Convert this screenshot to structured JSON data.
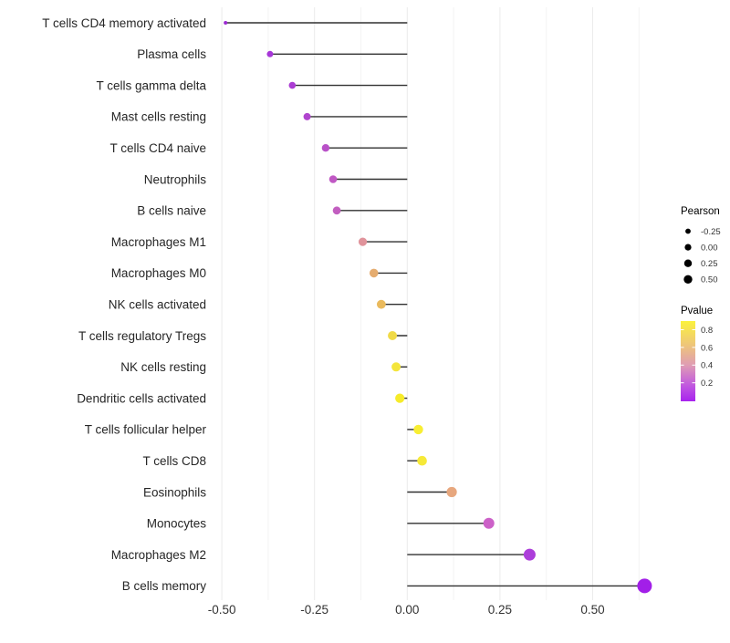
{
  "chart_data": {
    "type": "scatter",
    "subtype": "lollipop",
    "title": "",
    "xlabel": "",
    "ylabel": "",
    "orientation": "horizontal",
    "xlim": [
      -0.527,
      0.715
    ],
    "x_ticks": [
      -0.5,
      -0.25,
      0,
      0.25,
      0.5
    ],
    "x_tick_labels": [
      "-0.50",
      "-0.25",
      "0.00",
      "0.25",
      "0.50"
    ],
    "x_minor_ticks": [
      -0.375,
      -0.125,
      0.125,
      0.375,
      0.625
    ],
    "grid": "vertical-only",
    "baseline_x": 0,
    "categories": [
      "T cells CD4 memory activated",
      "Plasma cells",
      "T cells gamma delta",
      "Mast cells resting",
      "T cells CD4 naive",
      "Neutrophils",
      "B cells naive",
      "Macrophages M1",
      "Macrophages M0",
      "NK cells activated",
      "T cells regulatory  Tregs",
      "NK cells resting",
      "Dendritic cells activated",
      "T cells follicular helper",
      "T cells CD8",
      "Eosinophils",
      "Monocytes",
      "Macrophages M2",
      "B cells memory"
    ],
    "points": [
      {
        "label": "T cells CD4 memory activated",
        "pearson": -0.49,
        "color": "#9C2BD1",
        "radius": 2.0
      },
      {
        "label": "Plasma cells",
        "pearson": -0.37,
        "color": "#A737D8",
        "radius": 3.5
      },
      {
        "label": "T cells gamma delta",
        "pearson": -0.31,
        "color": "#AB3CD3",
        "radius": 3.8
      },
      {
        "label": "Mast cells resting",
        "pearson": -0.27,
        "color": "#B045CE",
        "radius": 4.0
      },
      {
        "label": "T cells CD4 naive",
        "pearson": -0.22,
        "color": "#B951C8",
        "radius": 4.2
      },
      {
        "label": "Neutrophils",
        "pearson": -0.2,
        "color": "#C058C4",
        "radius": 4.3
      },
      {
        "label": "B cells naive",
        "pearson": -0.19,
        "color": "#C25EC0",
        "radius": 4.4
      },
      {
        "label": "Macrophages M1",
        "pearson": -0.12,
        "color": "#E0939B",
        "radius": 4.6
      },
      {
        "label": "Macrophages M0",
        "pearson": -0.09,
        "color": "#E5AC6F",
        "radius": 4.8
      },
      {
        "label": "NK cells activated",
        "pearson": -0.07,
        "color": "#EABA5D",
        "radius": 4.9
      },
      {
        "label": "T cells regulatory  Tregs",
        "pearson": -0.04,
        "color": "#F0DA47",
        "radius": 5.0
      },
      {
        "label": "NK cells resting",
        "pearson": -0.03,
        "color": "#F4E53C",
        "radius": 5.0
      },
      {
        "label": "Dendritic cells activated",
        "pearson": -0.02,
        "color": "#F6EB2A",
        "radius": 5.1
      },
      {
        "label": "T cells follicular helper",
        "pearson": 0.03,
        "color": "#F8EE33",
        "radius": 5.2
      },
      {
        "label": "T cells CD8",
        "pearson": 0.04,
        "color": "#F6E938",
        "radius": 5.3
      },
      {
        "label": "Eosinophils",
        "pearson": 0.12,
        "color": "#E7A77E",
        "radius": 5.6
      },
      {
        "label": "Monocytes",
        "pearson": 0.22,
        "color": "#CC61C8",
        "radius": 6.0
      },
      {
        "label": "Macrophages M2",
        "pearson": 0.33,
        "color": "#AC3EDA",
        "radius": 6.5
      },
      {
        "label": "B cells memory",
        "pearson": 0.64,
        "color": "#A21FE8",
        "radius": 8.0
      }
    ],
    "legend_size": {
      "title": "Pearson",
      "entries": [
        {
          "label": "-0.25",
          "r": 2.9
        },
        {
          "label": "0.00",
          "r": 3.6
        },
        {
          "label": "0.25",
          "r": 4.2
        },
        {
          "label": "0.50",
          "r": 4.7
        }
      ],
      "dot_color": "#000000"
    },
    "legend_color": {
      "title": "Pvalue",
      "tick_labels": [
        "0.8",
        "0.6",
        "0.4",
        "0.2"
      ],
      "gradient_stops": [
        "#FBF23D",
        "#EEC57A",
        "#DF9CB4",
        "#C159DF",
        "#A823EE"
      ]
    },
    "colors": {
      "stem": "#303030",
      "grid_major": "#EBEBEB",
      "grid_minor": "#F4F4F4",
      "axis_text": "#333333",
      "category_text": "#262626",
      "background": "#FFFFFF"
    }
  }
}
